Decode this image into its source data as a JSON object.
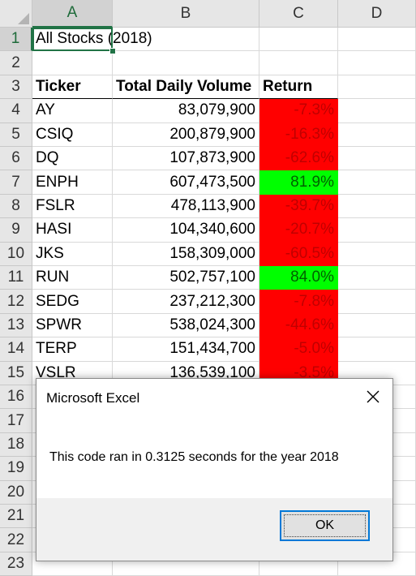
{
  "columns": [
    "A",
    "B",
    "C",
    "D"
  ],
  "rows": [
    "1",
    "2",
    "3",
    "4",
    "5",
    "6",
    "7",
    "8",
    "9",
    "10",
    "11",
    "12",
    "13",
    "14",
    "15",
    "16",
    "17",
    "18",
    "19",
    "20",
    "21",
    "22",
    "23"
  ],
  "sheet": {
    "a1": "All Stocks (2018)",
    "headers": {
      "ticker": "Ticker",
      "volume": "Total Daily Volume",
      "return": "Return"
    },
    "data": [
      {
        "ticker": "AY",
        "volume": "83,079,900",
        "return": "-7.3%",
        "status": "negative"
      },
      {
        "ticker": "CSIQ",
        "volume": "200,879,900",
        "return": "-16.3%",
        "status": "negative"
      },
      {
        "ticker": "DQ",
        "volume": "107,873,900",
        "return": "-62.6%",
        "status": "negative"
      },
      {
        "ticker": "ENPH",
        "volume": "607,473,500",
        "return": "81.9%",
        "status": "positive"
      },
      {
        "ticker": "FSLR",
        "volume": "478,113,900",
        "return": "-39.7%",
        "status": "negative"
      },
      {
        "ticker": "HASI",
        "volume": "104,340,600",
        "return": "-20.7%",
        "status": "negative"
      },
      {
        "ticker": "JKS",
        "volume": "158,309,000",
        "return": "-60.5%",
        "status": "negative"
      },
      {
        "ticker": "RUN",
        "volume": "502,757,100",
        "return": "84.0%",
        "status": "positive"
      },
      {
        "ticker": "SEDG",
        "volume": "237,212,300",
        "return": "-7.8%",
        "status": "negative"
      },
      {
        "ticker": "SPWR",
        "volume": "538,024,300",
        "return": "-44.6%",
        "status": "negative"
      },
      {
        "ticker": "TERP",
        "volume": "151,434,700",
        "return": "-5.0%",
        "status": "negative"
      },
      {
        "ticker": "VSLR",
        "volume": "136,539,100",
        "return": "-3.5%",
        "status": "negative"
      }
    ]
  },
  "dialog": {
    "title": "Microsoft Excel",
    "message": "This code ran in 0.3125 seconds for the year 2018",
    "ok_label": "OK"
  },
  "colors": {
    "negative_fill": "#ff0000",
    "positive_fill": "#00ff00",
    "selection_green": "#217346",
    "ok_border": "#0078d7"
  }
}
